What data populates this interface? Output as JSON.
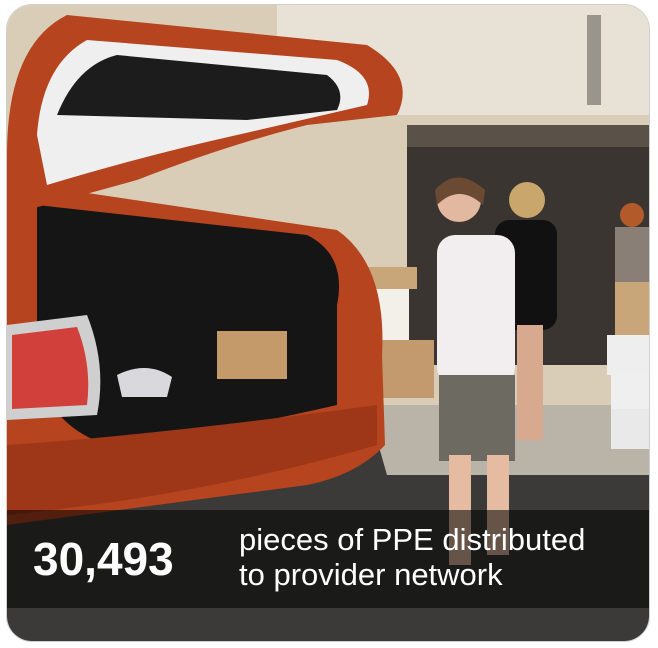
{
  "stat": {
    "number": "30,493",
    "description": [
      "pieces of PPE distributed",
      "to provider network"
    ]
  }
}
